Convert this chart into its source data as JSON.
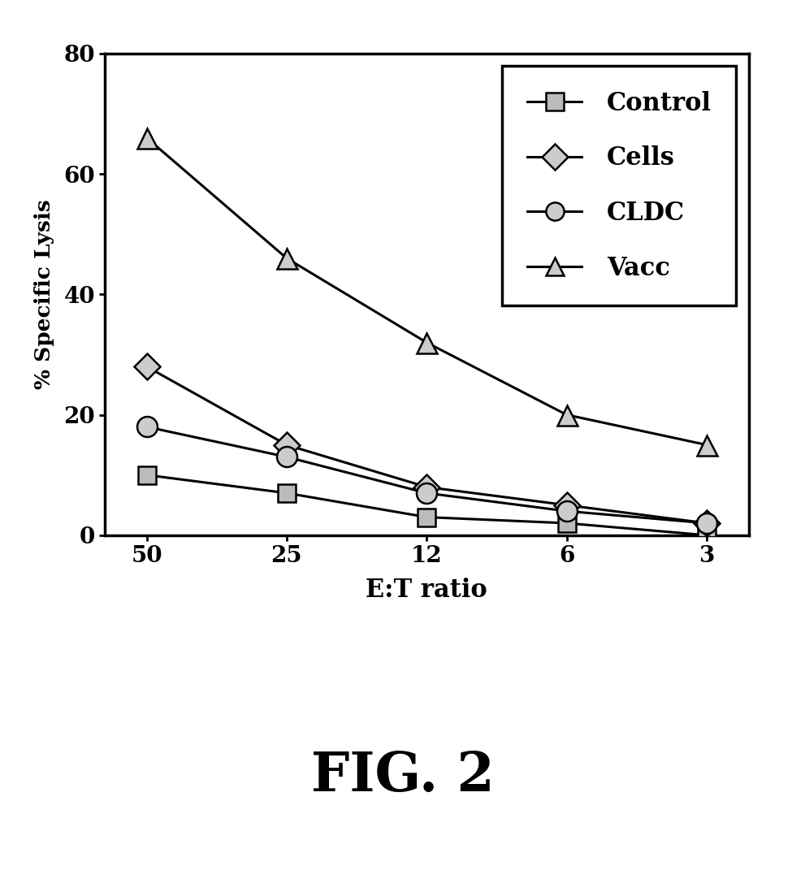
{
  "x_positions": [
    0,
    1,
    2,
    3,
    4
  ],
  "x_labels": [
    "50",
    "25",
    "12",
    "6",
    "3"
  ],
  "series": {
    "Control": {
      "y": [
        10,
        7,
        3,
        2,
        0
      ],
      "marker": "s",
      "markersize": 16,
      "mfc": "#bbbbbb",
      "mec": "#000000",
      "hatch": "xxx"
    },
    "Cells": {
      "y": [
        28,
        15,
        8,
        5,
        2
      ],
      "marker": "D",
      "markersize": 16,
      "mfc": "#cccccc",
      "mec": "#000000",
      "hatch": "///"
    },
    "CLDC": {
      "y": [
        18,
        13,
        7,
        4,
        2
      ],
      "marker": "o",
      "markersize": 18,
      "mfc": "#cccccc",
      "mec": "#000000",
      "hatch": "..."
    },
    "Vacc": {
      "y": [
        66,
        46,
        32,
        20,
        15
      ],
      "marker": "^",
      "markersize": 18,
      "mfc": "#cccccc",
      "mec": "#000000",
      "hatch": "///"
    }
  },
  "ylabel": "% Specific Lysis",
  "xlabel": "E:T ratio",
  "ylim": [
    0,
    80
  ],
  "yticks": [
    0,
    20,
    40,
    60,
    80
  ],
  "title": "FIG. 2",
  "background_color": "#ffffff",
  "line_color": "#000000",
  "legend_labels": [
    "Control",
    "Cells",
    "CLDC",
    "Vacc"
  ]
}
